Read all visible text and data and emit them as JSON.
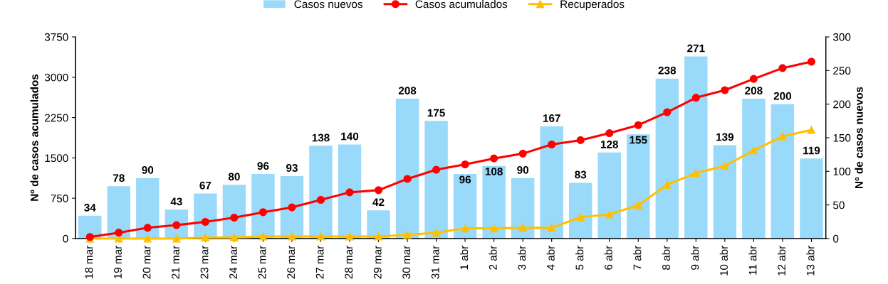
{
  "chart_data": {
    "type": "bar",
    "categories": [
      "18 mar",
      "19 mar",
      "20 mar",
      "21 mar",
      "23 mar",
      "24 mar",
      "25 mar",
      "26 mar",
      "27 mar",
      "28 mar",
      "29 mar",
      "30 mar",
      "31 mar",
      "1 abr",
      "2 abr",
      "3 abr",
      "4 abr",
      "5 abr",
      "6 abr",
      "7 abr",
      "8 abr",
      "9 abr",
      "10 abr",
      "11 abr",
      "12 abr",
      "13 abr"
    ],
    "ylabel": "Nº de casos acumulados",
    "y2label": "Nº de casos nuevos",
    "ylim": [
      0,
      3750
    ],
    "yticks": [
      0,
      750,
      1500,
      2250,
      3000,
      3750
    ],
    "y2lim": [
      0,
      300
    ],
    "y2ticks": [
      0,
      50,
      100,
      150,
      200,
      250,
      300
    ],
    "legend": "top",
    "grid": false,
    "series": [
      {
        "name": "Casos nuevos",
        "axis": "y2",
        "color": "#99d9fa",
        "data_labels": true,
        "values": [
          34,
          78,
          90,
          43,
          67,
          80,
          96,
          93,
          138,
          140,
          42,
          208,
          175,
          96,
          108,
          90,
          167,
          83,
          128,
          155,
          238,
          271,
          139,
          208,
          200,
          119
        ]
      },
      {
        "name": "Casos acumulados",
        "type": "line",
        "axis": "y",
        "color": "#ff0000",
        "marker": "circle",
        "values": [
          30,
          110,
          200,
          250,
          310,
          390,
          490,
          580,
          720,
          860,
          900,
          1110,
          1280,
          1380,
          1490,
          1580,
          1750,
          1830,
          1960,
          2110,
          2350,
          2620,
          2760,
          2970,
          3170,
          3290
        ]
      },
      {
        "name": "Recuperados",
        "type": "line",
        "axis": "y",
        "color": "#ffc000",
        "marker": "triangle",
        "values": [
          0,
          0,
          0,
          0,
          20,
          20,
          40,
          40,
          40,
          40,
          40,
          70,
          110,
          190,
          190,
          200,
          200,
          400,
          450,
          620,
          1000,
          1220,
          1350,
          1640,
          1900,
          2020
        ]
      }
    ]
  }
}
